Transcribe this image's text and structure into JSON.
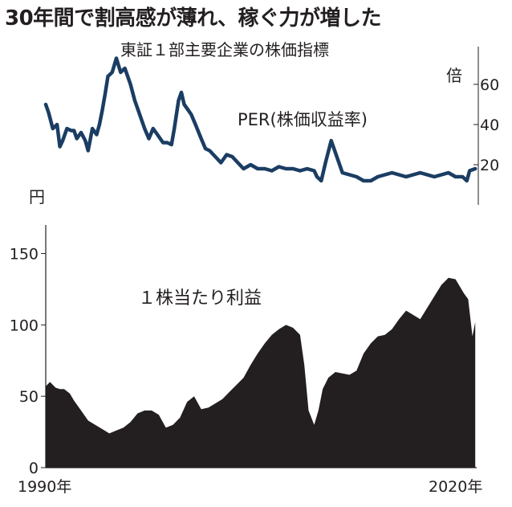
{
  "headline": "30年間で割高感が薄れ、稼ぐ力が増した",
  "subtitle": "東証１部主要企業の株価指標",
  "colors": {
    "per_line": "#1b3d63",
    "eps_area": "#231f20",
    "axis": "#231f20"
  },
  "chart_data": [
    {
      "type": "line",
      "title": "PER(株価収益率)",
      "unit": "倍",
      "yaxis_side": "right",
      "ylim": [
        0,
        70
      ],
      "yticks": [
        20,
        40,
        60
      ],
      "xlim": [
        1990,
        2020.5
      ],
      "series": [
        {
          "name": "PER(株価収益率)",
          "x": [
            1990.0,
            1990.2,
            1990.5,
            1990.8,
            1991.0,
            1991.2,
            1991.5,
            1991.8,
            1992.0,
            1992.2,
            1992.5,
            1992.8,
            1993.0,
            1993.3,
            1993.6,
            1993.8,
            1994.0,
            1994.2,
            1994.4,
            1994.7,
            1995.0,
            1995.3,
            1995.6,
            1996.0,
            1996.3,
            1996.6,
            1997.0,
            1997.3,
            1997.6,
            1998.0,
            1998.3,
            1998.6,
            1998.9,
            1999.1,
            1999.4,
            1999.6,
            1999.8,
            2000.0,
            2000.3,
            2000.6,
            2001.0,
            2001.3,
            2001.6,
            2002.0,
            2002.4,
            2002.8,
            2003.2,
            2003.6,
            2004.0,
            2004.5,
            2005.0,
            2005.5,
            2006.0,
            2006.5,
            2007.0,
            2007.5,
            2008.0,
            2008.5,
            2009.0,
            2009.2,
            2009.5,
            2009.8,
            2010.2,
            2010.6,
            2011.0,
            2011.5,
            2012.0,
            2012.5,
            2013.0,
            2013.5,
            2014.0,
            2014.5,
            2015.0,
            2015.5,
            2016.0,
            2016.5,
            2017.0,
            2017.5,
            2018.0,
            2018.5,
            2019.0,
            2019.5,
            2019.8,
            2020.0,
            2020.4
          ],
          "y": [
            50,
            46,
            38,
            40,
            29,
            32,
            38,
            37,
            37,
            33,
            36,
            32,
            27,
            38,
            35,
            40,
            47,
            55,
            64,
            66,
            73,
            66,
            68,
            60,
            52,
            46,
            38,
            33,
            38,
            34,
            31,
            31,
            30,
            38,
            52,
            56,
            50,
            48,
            45,
            40,
            33,
            28,
            27,
            24,
            21,
            25,
            24,
            21,
            18,
            20,
            18,
            18,
            17,
            19,
            18,
            18,
            17,
            18,
            17,
            14,
            12,
            21,
            32,
            24,
            16,
            15,
            14,
            12,
            12,
            14,
            15,
            16,
            15,
            14,
            15,
            16,
            15,
            14,
            15,
            16,
            14,
            14,
            12,
            17,
            18
          ]
        }
      ]
    },
    {
      "type": "area",
      "title": "１株当たり利益",
      "unit": "円",
      "yaxis_side": "left",
      "ylim": [
        0,
        170
      ],
      "yticks": [
        0,
        50,
        100,
        150
      ],
      "xlim": [
        1990,
        2020.5
      ],
      "x_tick_labels": [
        "1990年",
        "2020年"
      ],
      "series": [
        {
          "name": "１株当たり利益",
          "x": [
            1990.0,
            1990.3,
            1990.7,
            1991.0,
            1991.3,
            1991.7,
            1992.0,
            1992.5,
            1993.0,
            1993.5,
            1994.0,
            1994.5,
            1995.0,
            1995.5,
            1996.0,
            1996.5,
            1997.0,
            1997.5,
            1998.0,
            1998.5,
            1999.0,
            1999.5,
            2000.0,
            2000.5,
            2001.0,
            2001.5,
            2002.0,
            2002.5,
            2003.0,
            2003.5,
            2004.0,
            2004.5,
            2005.0,
            2005.5,
            2006.0,
            2006.5,
            2007.0,
            2007.5,
            2008.0,
            2008.3,
            2008.6,
            2009.0,
            2009.3,
            2009.6,
            2010.0,
            2010.5,
            2011.0,
            2011.5,
            2012.0,
            2012.5,
            2013.0,
            2013.5,
            2014.0,
            2014.5,
            2015.0,
            2015.5,
            2016.0,
            2016.5,
            2017.0,
            2017.5,
            2018.0,
            2018.5,
            2019.0,
            2019.3,
            2019.6,
            2019.9,
            2020.2,
            2020.4
          ],
          "y": [
            57,
            60,
            56,
            55,
            55,
            52,
            47,
            40,
            33,
            30,
            27,
            24,
            26,
            28,
            32,
            38,
            40,
            40,
            37,
            28,
            30,
            35,
            46,
            50,
            41,
            42,
            45,
            48,
            53,
            58,
            63,
            72,
            80,
            87,
            93,
            97,
            100,
            98,
            93,
            72,
            40,
            30,
            40,
            55,
            63,
            67,
            66,
            65,
            68,
            80,
            87,
            92,
            93,
            97,
            104,
            110,
            107,
            104,
            112,
            120,
            128,
            133,
            132,
            127,
            122,
            118,
            92,
            102
          ]
        }
      ]
    }
  ]
}
